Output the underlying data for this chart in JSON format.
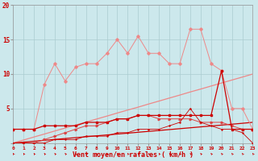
{
  "xlabel": "Vent moyen/en rafales ( km/h )",
  "background_color": "#cce8ec",
  "grid_color": "#aaccd0",
  "text_color": "#cc0000",
  "x": [
    0,
    1,
    2,
    3,
    4,
    5,
    6,
    7,
    8,
    9,
    10,
    11,
    12,
    13,
    14,
    15,
    16,
    17,
    18,
    19,
    20,
    21,
    22,
    23
  ],
  "line_rafales": [
    2,
    2,
    2,
    8.5,
    11.5,
    9,
    11,
    11.5,
    11.5,
    13,
    15,
    13,
    15.5,
    13,
    13,
    11.5,
    11.5,
    16.5,
    16.5,
    11.5,
    10.5,
    5,
    5,
    2
  ],
  "line_triangle": [
    2,
    2,
    2,
    2.5,
    2.5,
    2.5,
    2.5,
    3,
    3,
    3,
    3.5,
    3.5,
    4,
    4,
    4,
    4,
    4,
    4,
    4,
    4,
    10.5,
    2,
    2,
    2
  ],
  "line_moyen": [
    0,
    0,
    0,
    0.5,
    1,
    1.5,
    2,
    2.5,
    2.5,
    3,
    3.5,
    3.5,
    4,
    4,
    3.5,
    3.5,
    3.5,
    3.5,
    3,
    3,
    3,
    2.5,
    2,
    2
  ],
  "line_trend_light": [
    0,
    0.43,
    0.87,
    1.3,
    1.74,
    2.17,
    2.6,
    3.04,
    3.47,
    3.9,
    4.35,
    4.78,
    5.2,
    5.65,
    6.08,
    6.52,
    6.95,
    7.4,
    7.82,
    8.26,
    8.7,
    9.13,
    9.56,
    10.0
  ],
  "line_trend_dark": [
    0,
    0.13,
    0.26,
    0.39,
    0.52,
    0.65,
    0.78,
    0.91,
    1.04,
    1.17,
    1.3,
    1.43,
    1.56,
    1.69,
    1.82,
    1.95,
    2.08,
    2.21,
    2.34,
    2.47,
    2.6,
    2.73,
    2.86,
    3.0
  ],
  "line_small_markers": [
    0,
    0,
    0,
    0,
    0.5,
    0.5,
    0.5,
    1,
    1,
    1,
    1.5,
    1.5,
    2,
    2,
    2,
    2.5,
    3,
    5,
    3,
    2.5,
    2,
    2,
    1.5,
    0
  ],
  "line_flat": [
    0,
    0,
    0,
    0,
    0,
    0,
    0,
    0,
    0,
    0,
    0,
    0,
    0,
    0,
    0,
    0,
    0,
    0,
    0,
    0,
    0,
    0,
    0,
    0
  ],
  "ylim": [
    0,
    20
  ],
  "xlim": [
    0,
    23
  ],
  "yticks": [
    0,
    5,
    10,
    15,
    20
  ]
}
